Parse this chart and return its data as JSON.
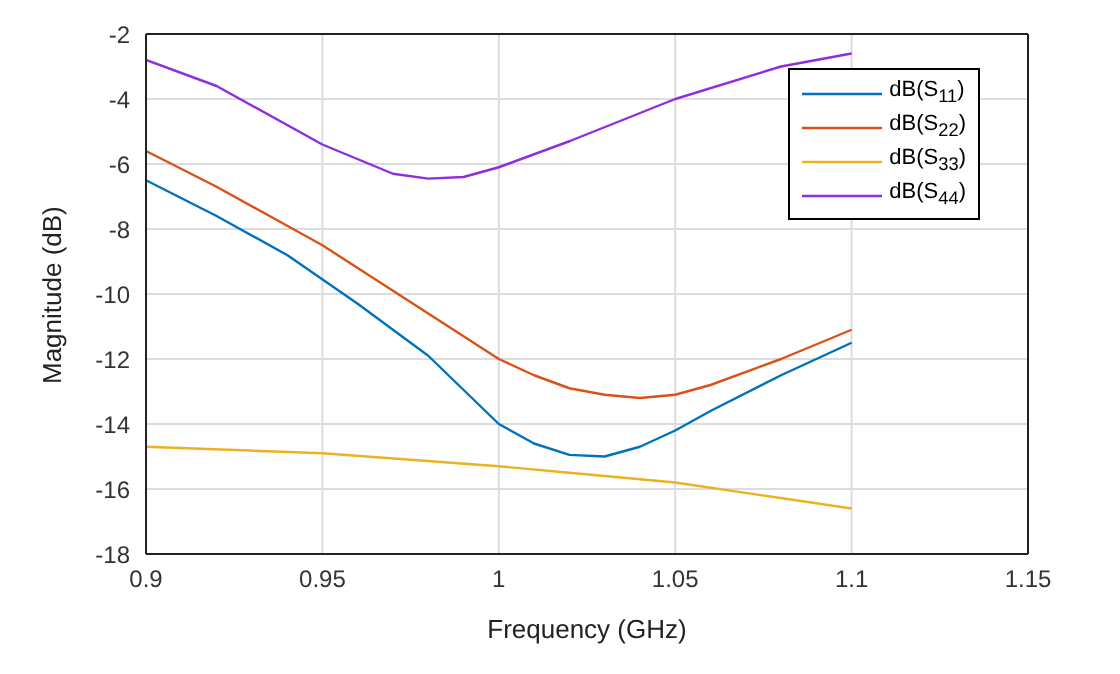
{
  "chart_data": {
    "type": "line",
    "xlabel": "Frequency (GHz)",
    "ylabel": "Magnitude (dB)",
    "xlim": [
      0.9,
      1.15
    ],
    "xticks": [
      0.9,
      0.95,
      1,
      1.05,
      1.1,
      1.15
    ],
    "ylim": [
      -18,
      -2
    ],
    "yticks": [
      -18,
      -16,
      -14,
      -12,
      -10,
      -8,
      -6,
      -4,
      -2
    ],
    "grid": true,
    "legend": "top right",
    "marker": "none",
    "line_style": "solid",
    "series": [
      {
        "name": "dB(S$_{11}$)",
        "color": "#0072bd",
        "x": [
          0.9,
          0.92,
          0.94,
          0.96,
          0.98,
          1.0,
          1.01,
          1.02,
          1.03,
          1.04,
          1.05,
          1.06,
          1.08,
          1.1
        ],
        "values": [
          -6.5,
          -7.6,
          -8.8,
          -10.3,
          -11.9,
          -14.0,
          -14.6,
          -14.95,
          -15.0,
          -14.7,
          -14.2,
          -13.6,
          -12.5,
          -11.5
        ]
      },
      {
        "name": "dB(S$_{22}$)",
        "color": "#d95319",
        "x": [
          0.9,
          0.92,
          0.95,
          0.96,
          0.98,
          0.99,
          1.0,
          1.01,
          1.02,
          1.03,
          1.04,
          1.05,
          1.06,
          1.08,
          1.1
        ],
        "values": [
          -5.6,
          -6.7,
          -8.5,
          -9.2,
          -10.6,
          -11.3,
          -12.0,
          -12.5,
          -12.9,
          -13.1,
          -13.2,
          -13.1,
          -12.8,
          -12.0,
          -11.1
        ]
      },
      {
        "name": "dB(S$_{33}$)",
        "color": "#edb120",
        "x": [
          0.9,
          0.95,
          1.0,
          1.02,
          1.05,
          1.1
        ],
        "values": [
          -14.7,
          -14.9,
          -15.3,
          -15.5,
          -15.8,
          -16.6
        ]
      },
      {
        "name": "dB(S$_{44}$)",
        "color": "#8e2ee0",
        "x": [
          0.9,
          0.92,
          0.95,
          0.97,
          0.98,
          0.99,
          1.0,
          1.02,
          1.05,
          1.08,
          1.1
        ],
        "values": [
          -2.8,
          -3.6,
          -5.4,
          -6.3,
          -6.45,
          -6.4,
          -6.1,
          -5.3,
          -4.0,
          -3.0,
          -2.6
        ]
      }
    ]
  }
}
